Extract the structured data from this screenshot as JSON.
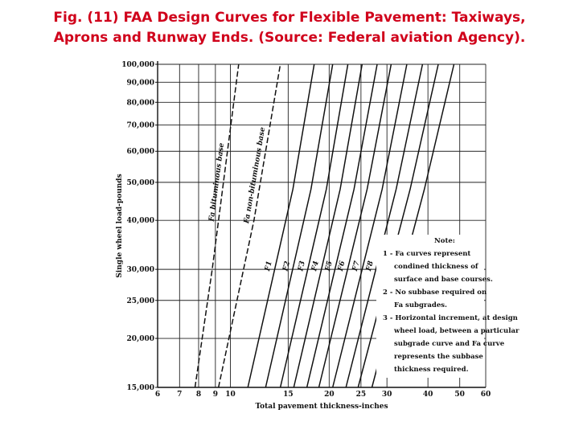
{
  "title_line1": "Fig. (11) FAA Design Curves for Flexible Pavement: Taxiways,",
  "title_line2": "Aprons and Runway Ends. (Source: Federal aviation Agency).",
  "chart_data": {
    "type": "line",
    "xlabel": "Total pavement thickness-inches",
    "ylabel": "Single wheel load-pounds",
    "x_scale": "log",
    "y_scale": "log",
    "xlim": [
      6,
      60
    ],
    "ylim": [
      15000,
      100000
    ],
    "x_ticks": [
      6,
      7,
      8,
      9,
      10,
      15,
      20,
      25,
      30,
      40,
      50,
      60
    ],
    "x_tick_labels": [
      "6",
      "7",
      "8",
      "9",
      "10",
      "15",
      "20",
      "25",
      "30",
      "40",
      "50",
      "60"
    ],
    "y_ticks": [
      15000,
      20000,
      25000,
      30000,
      40000,
      50000,
      60000,
      70000,
      80000,
      90000,
      100000
    ],
    "y_tick_labels": [
      "15,000",
      "20,000",
      "25,000",
      "30,000",
      "40,000",
      "50,000",
      "60,000",
      "70,000",
      "80,000",
      "90,000",
      "100,000"
    ],
    "grid": true,
    "series": [
      {
        "name": "Fa bituminous base",
        "points": [
          [
            7.8,
            15000
          ],
          [
            8.8,
            30000
          ],
          [
            10.6,
            100000
          ]
        ]
      },
      {
        "name": "Fa non-bituminous base",
        "points": [
          [
            9.2,
            15000
          ],
          [
            11.8,
            40000
          ],
          [
            14.2,
            100000
          ]
        ]
      },
      {
        "name": "F1",
        "points": [
          [
            11.3,
            15000
          ],
          [
            15.5,
            48000
          ],
          [
            18.0,
            100000
          ]
        ]
      },
      {
        "name": "F2",
        "points": [
          [
            12.8,
            15000
          ],
          [
            17.6,
            48000
          ],
          [
            20.5,
            100000
          ]
        ]
      },
      {
        "name": "F3",
        "points": [
          [
            14.2,
            15000
          ],
          [
            19.6,
            48000
          ],
          [
            22.8,
            100000
          ]
        ]
      },
      {
        "name": "F4",
        "points": [
          [
            15.6,
            15000
          ],
          [
            21.6,
            48000
          ],
          [
            25.2,
            100000
          ]
        ]
      },
      {
        "name": "F5",
        "points": [
          [
            17.1,
            15000
          ],
          [
            23.8,
            48000
          ],
          [
            28.0,
            100000
          ]
        ]
      },
      {
        "name": "F6",
        "points": [
          [
            18.6,
            15000
          ],
          [
            26.1,
            48000
          ],
          [
            30.9,
            100000
          ]
        ]
      },
      {
        "name": "F7",
        "points": [
          [
            20.5,
            15000
          ],
          [
            29.0,
            48000
          ],
          [
            34.5,
            100000
          ]
        ]
      },
      {
        "name": "F8",
        "points": [
          [
            22.5,
            15000
          ],
          [
            32.0,
            48000
          ],
          [
            38.5,
            100000
          ]
        ]
      },
      {
        "name": "F9",
        "points": [
          [
            24.5,
            15000
          ],
          [
            35.3,
            48000
          ],
          [
            43.0,
            100000
          ]
        ]
      },
      {
        "name": "F10",
        "points": [
          [
            27.0,
            15000
          ],
          [
            39.0,
            48000
          ],
          [
            48.0,
            100000
          ]
        ]
      }
    ],
    "note_lines": [
      "Note:",
      "1 - Fa curves represent",
      "condined thickness of",
      "surface and base courses.",
      "2 - No subbase required on",
      "Fa subgrades.",
      "3 - Horizontal increment, at design",
      "wheel load, between a particular",
      "subgrade curve and Fa curve",
      "represents the subbase",
      "thickness required."
    ]
  }
}
